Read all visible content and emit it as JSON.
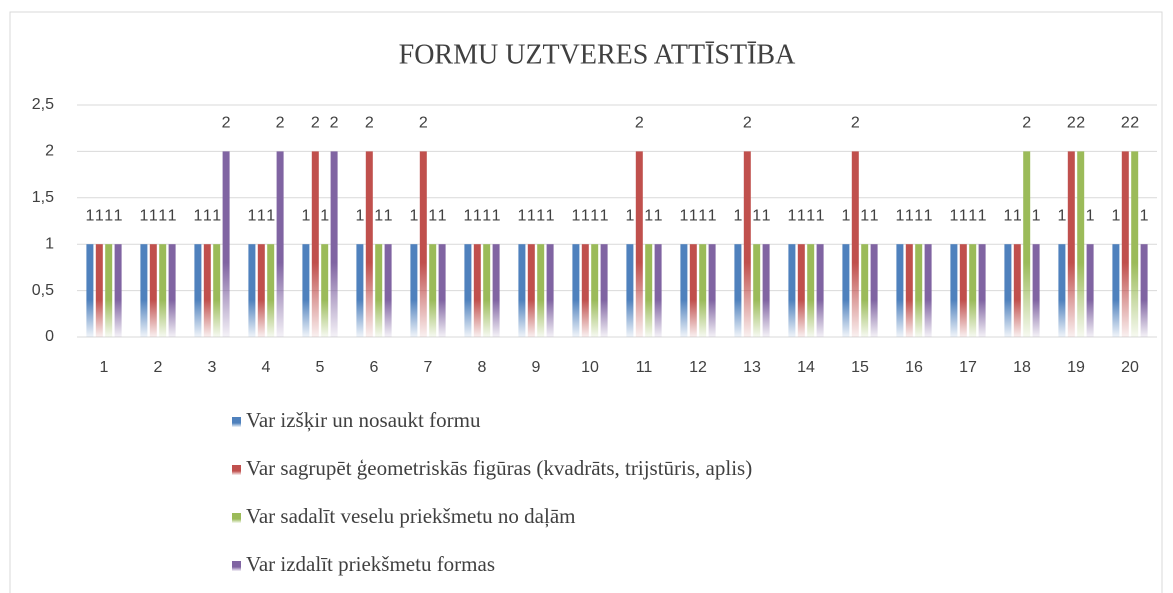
{
  "chart_data": {
    "type": "bar",
    "title": "FORMU UZTVERES ATTĪSTĪBA",
    "categories": [
      "1",
      "2",
      "3",
      "4",
      "5",
      "6",
      "7",
      "8",
      "9",
      "10",
      "11",
      "12",
      "13",
      "14",
      "15",
      "16",
      "17",
      "18",
      "19",
      "20"
    ],
    "series": [
      {
        "name": "Var izšķir un nosaukt formu",
        "color": "#4f81bd",
        "values": [
          1,
          1,
          1,
          1,
          1,
          1,
          1,
          1,
          1,
          1,
          1,
          1,
          1,
          1,
          1,
          1,
          1,
          1,
          1,
          1
        ]
      },
      {
        "name": "Var sagrupēt ģeometriskās figūras (kvadrāts, trijstūris, aplis)",
        "color": "#c0504d",
        "values": [
          1,
          1,
          1,
          1,
          2,
          2,
          2,
          1,
          1,
          1,
          2,
          1,
          2,
          1,
          2,
          1,
          1,
          1,
          2,
          2
        ]
      },
      {
        "name": "Var sadalīt veselu priekšmetu no daļām",
        "color": "#9bbb59",
        "values": [
          1,
          1,
          1,
          1,
          1,
          1,
          1,
          1,
          1,
          1,
          1,
          1,
          1,
          1,
          1,
          1,
          1,
          2,
          2,
          2
        ]
      },
      {
        "name": "Var izdalīt priekšmetu formas",
        "color": "#8064a2",
        "values": [
          1,
          1,
          2,
          2,
          2,
          1,
          1,
          1,
          1,
          1,
          1,
          1,
          1,
          1,
          1,
          1,
          1,
          1,
          1,
          1
        ]
      }
    ],
    "ylim": [
      0,
      2.5
    ],
    "yticks": [
      0,
      {
        "value": 0.5,
        "label": "0,5"
      },
      1,
      {
        "value": 1.5,
        "label": "1,5"
      },
      2,
      {
        "value": 2.5,
        "label": "2,5"
      }
    ],
    "grid": true,
    "legend": "bottom"
  }
}
